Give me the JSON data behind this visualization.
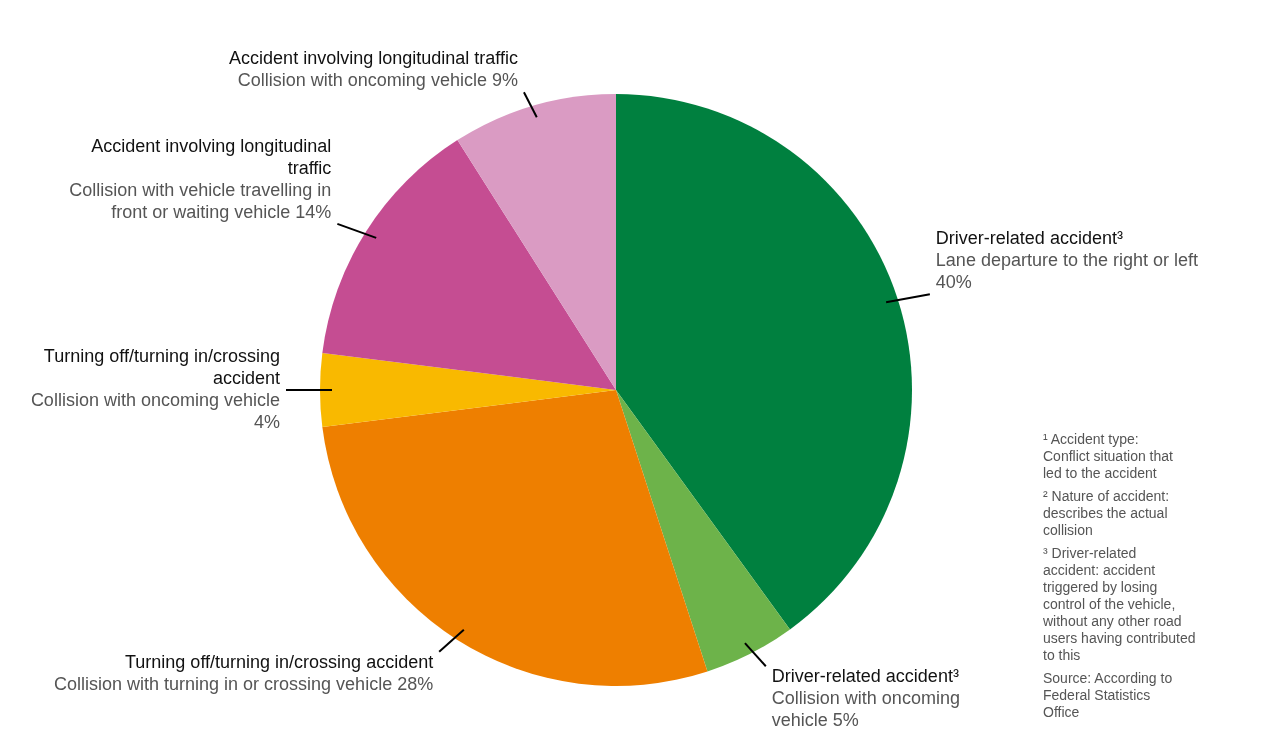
{
  "chart_data": {
    "type": "pie",
    "categories": [
      "Driver-related accident³\nLane departure to the right or left",
      "Driver-related accident³\nCollision with oncoming vehicle",
      "Turning off/turning in/crossing accident\nCollision with turning in or crossing vehicle",
      "Turning off/turning in/crossing accident\nCollision with oncoming vehicle",
      "Accident involving longitudinal traffic\nCollision with vehicle travelling in front or waiting vehicle",
      "Accident involving longitudinal traffic\nCollision with oncoming vehicle"
    ],
    "values": [
      40,
      5,
      28,
      4,
      14,
      9
    ],
    "value_labels": [
      "40%",
      "5%",
      "28%",
      "4%",
      "14%",
      "9%"
    ],
    "colors": [
      "#00803f",
      "#6db34a",
      "#ee7f00",
      "#f9b900",
      "#c54d92",
      "#da9bc3"
    ],
    "annotations": [
      "¹ Accident type: Conflict situation that led to the accident",
      "² Nature of accident: describes the actual collision",
      "³ Driver-related accident: accident triggered by losing control of the vehicle, without any other road users having contributed to this",
      "Source: According to Federal Statistics Office"
    ]
  }
}
